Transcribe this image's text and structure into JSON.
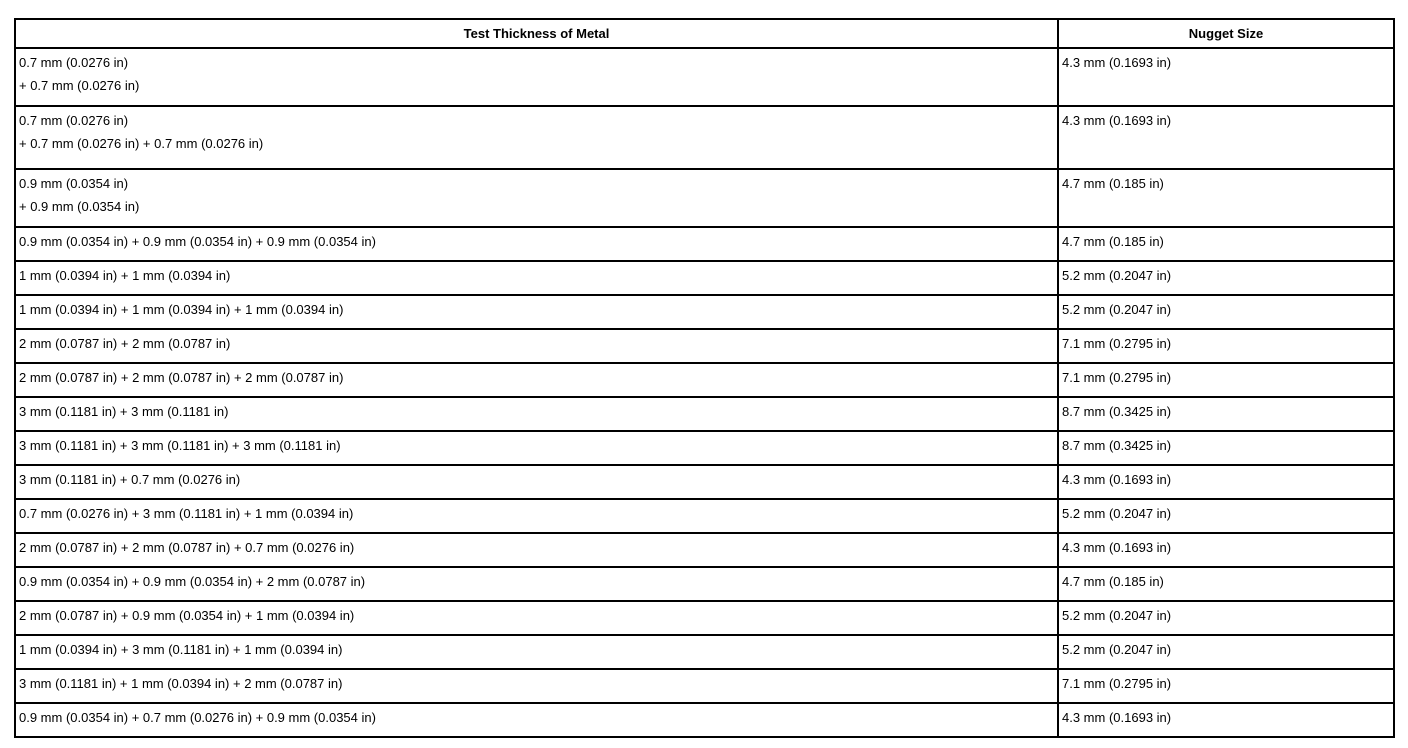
{
  "table": {
    "headers": [
      "Test Thickness of Metal",
      "Nugget Size"
    ],
    "rows": [
      {
        "thickness": [
          "0.7 mm (0.0276 in)",
          "+ 0.7 mm (0.0276 in)"
        ],
        "nugget": "4.3 mm (0.1693 in)"
      },
      {
        "thickness": [
          "0.7 mm (0.0276 in)",
          "+ 0.7 mm (0.0276 in) + 0.7 mm (0.0276 in)"
        ],
        "nugget": "4.3 mm (0.1693 in)"
      },
      {
        "thickness": [
          "0.9 mm (0.0354 in)",
          "+ 0.9 mm (0.0354 in)"
        ],
        "nugget": "4.7 mm (0.185 in)"
      },
      {
        "thickness": [
          "0.9 mm (0.0354 in) + 0.9 mm (0.0354 in) + 0.9 mm (0.0354 in)"
        ],
        "nugget": "4.7 mm (0.185 in)"
      },
      {
        "thickness": [
          "1 mm (0.0394 in) + 1 mm (0.0394 in)"
        ],
        "nugget": "5.2 mm (0.2047 in)"
      },
      {
        "thickness": [
          "1 mm (0.0394 in) + 1 mm (0.0394 in) + 1 mm (0.0394 in)"
        ],
        "nugget": "5.2 mm (0.2047 in)"
      },
      {
        "thickness": [
          "2 mm (0.0787 in) + 2 mm (0.0787 in)"
        ],
        "nugget": "7.1 mm (0.2795 in)"
      },
      {
        "thickness": [
          "2 mm (0.0787 in) + 2 mm (0.0787 in) + 2 mm (0.0787 in)"
        ],
        "nugget": "7.1 mm (0.2795 in)"
      },
      {
        "thickness": [
          "3 mm (0.1181 in) + 3 mm (0.1181 in)"
        ],
        "nugget": "8.7 mm (0.3425 in)"
      },
      {
        "thickness": [
          "3 mm (0.1181 in) + 3 mm (0.1181 in) + 3 mm (0.1181 in)"
        ],
        "nugget": "8.7 mm (0.3425 in)"
      },
      {
        "thickness": [
          "3 mm (0.1181 in) + 0.7 mm (0.0276 in)"
        ],
        "nugget": "4.3 mm (0.1693 in)"
      },
      {
        "thickness": [
          "0.7 mm (0.0276 in) + 3 mm (0.1181 in) + 1 mm (0.0394 in)"
        ],
        "nugget": "5.2 mm (0.2047 in)"
      },
      {
        "thickness": [
          "2 mm (0.0787 in) + 2 mm (0.0787 in) + 0.7 mm (0.0276 in)"
        ],
        "nugget": "4.3 mm (0.1693 in)"
      },
      {
        "thickness": [
          "0.9 mm (0.0354 in) + 0.9 mm (0.0354 in) + 2 mm (0.0787 in)"
        ],
        "nugget": "4.7 mm (0.185 in)"
      },
      {
        "thickness": [
          "2 mm (0.0787 in) + 0.9 mm (0.0354 in) + 1 mm (0.0394 in)"
        ],
        "nugget": "5.2 mm (0.2047 in)"
      },
      {
        "thickness": [
          "1 mm (0.0394 in) + 3 mm (0.1181 in) + 1 mm (0.0394 in)"
        ],
        "nugget": "5.2 mm (0.2047 in)"
      },
      {
        "thickness": [
          "3 mm (0.1181 in) + 1 mm (0.0394 in) + 2 mm (0.0787 in)"
        ],
        "nugget": "7.1 mm (0.2795 in)"
      },
      {
        "thickness": [
          "0.9 mm (0.0354 in) + 0.7 mm (0.0276 in) + 0.9 mm (0.0354 in)"
        ],
        "nugget": "4.3 mm (0.1693 in)"
      }
    ]
  }
}
